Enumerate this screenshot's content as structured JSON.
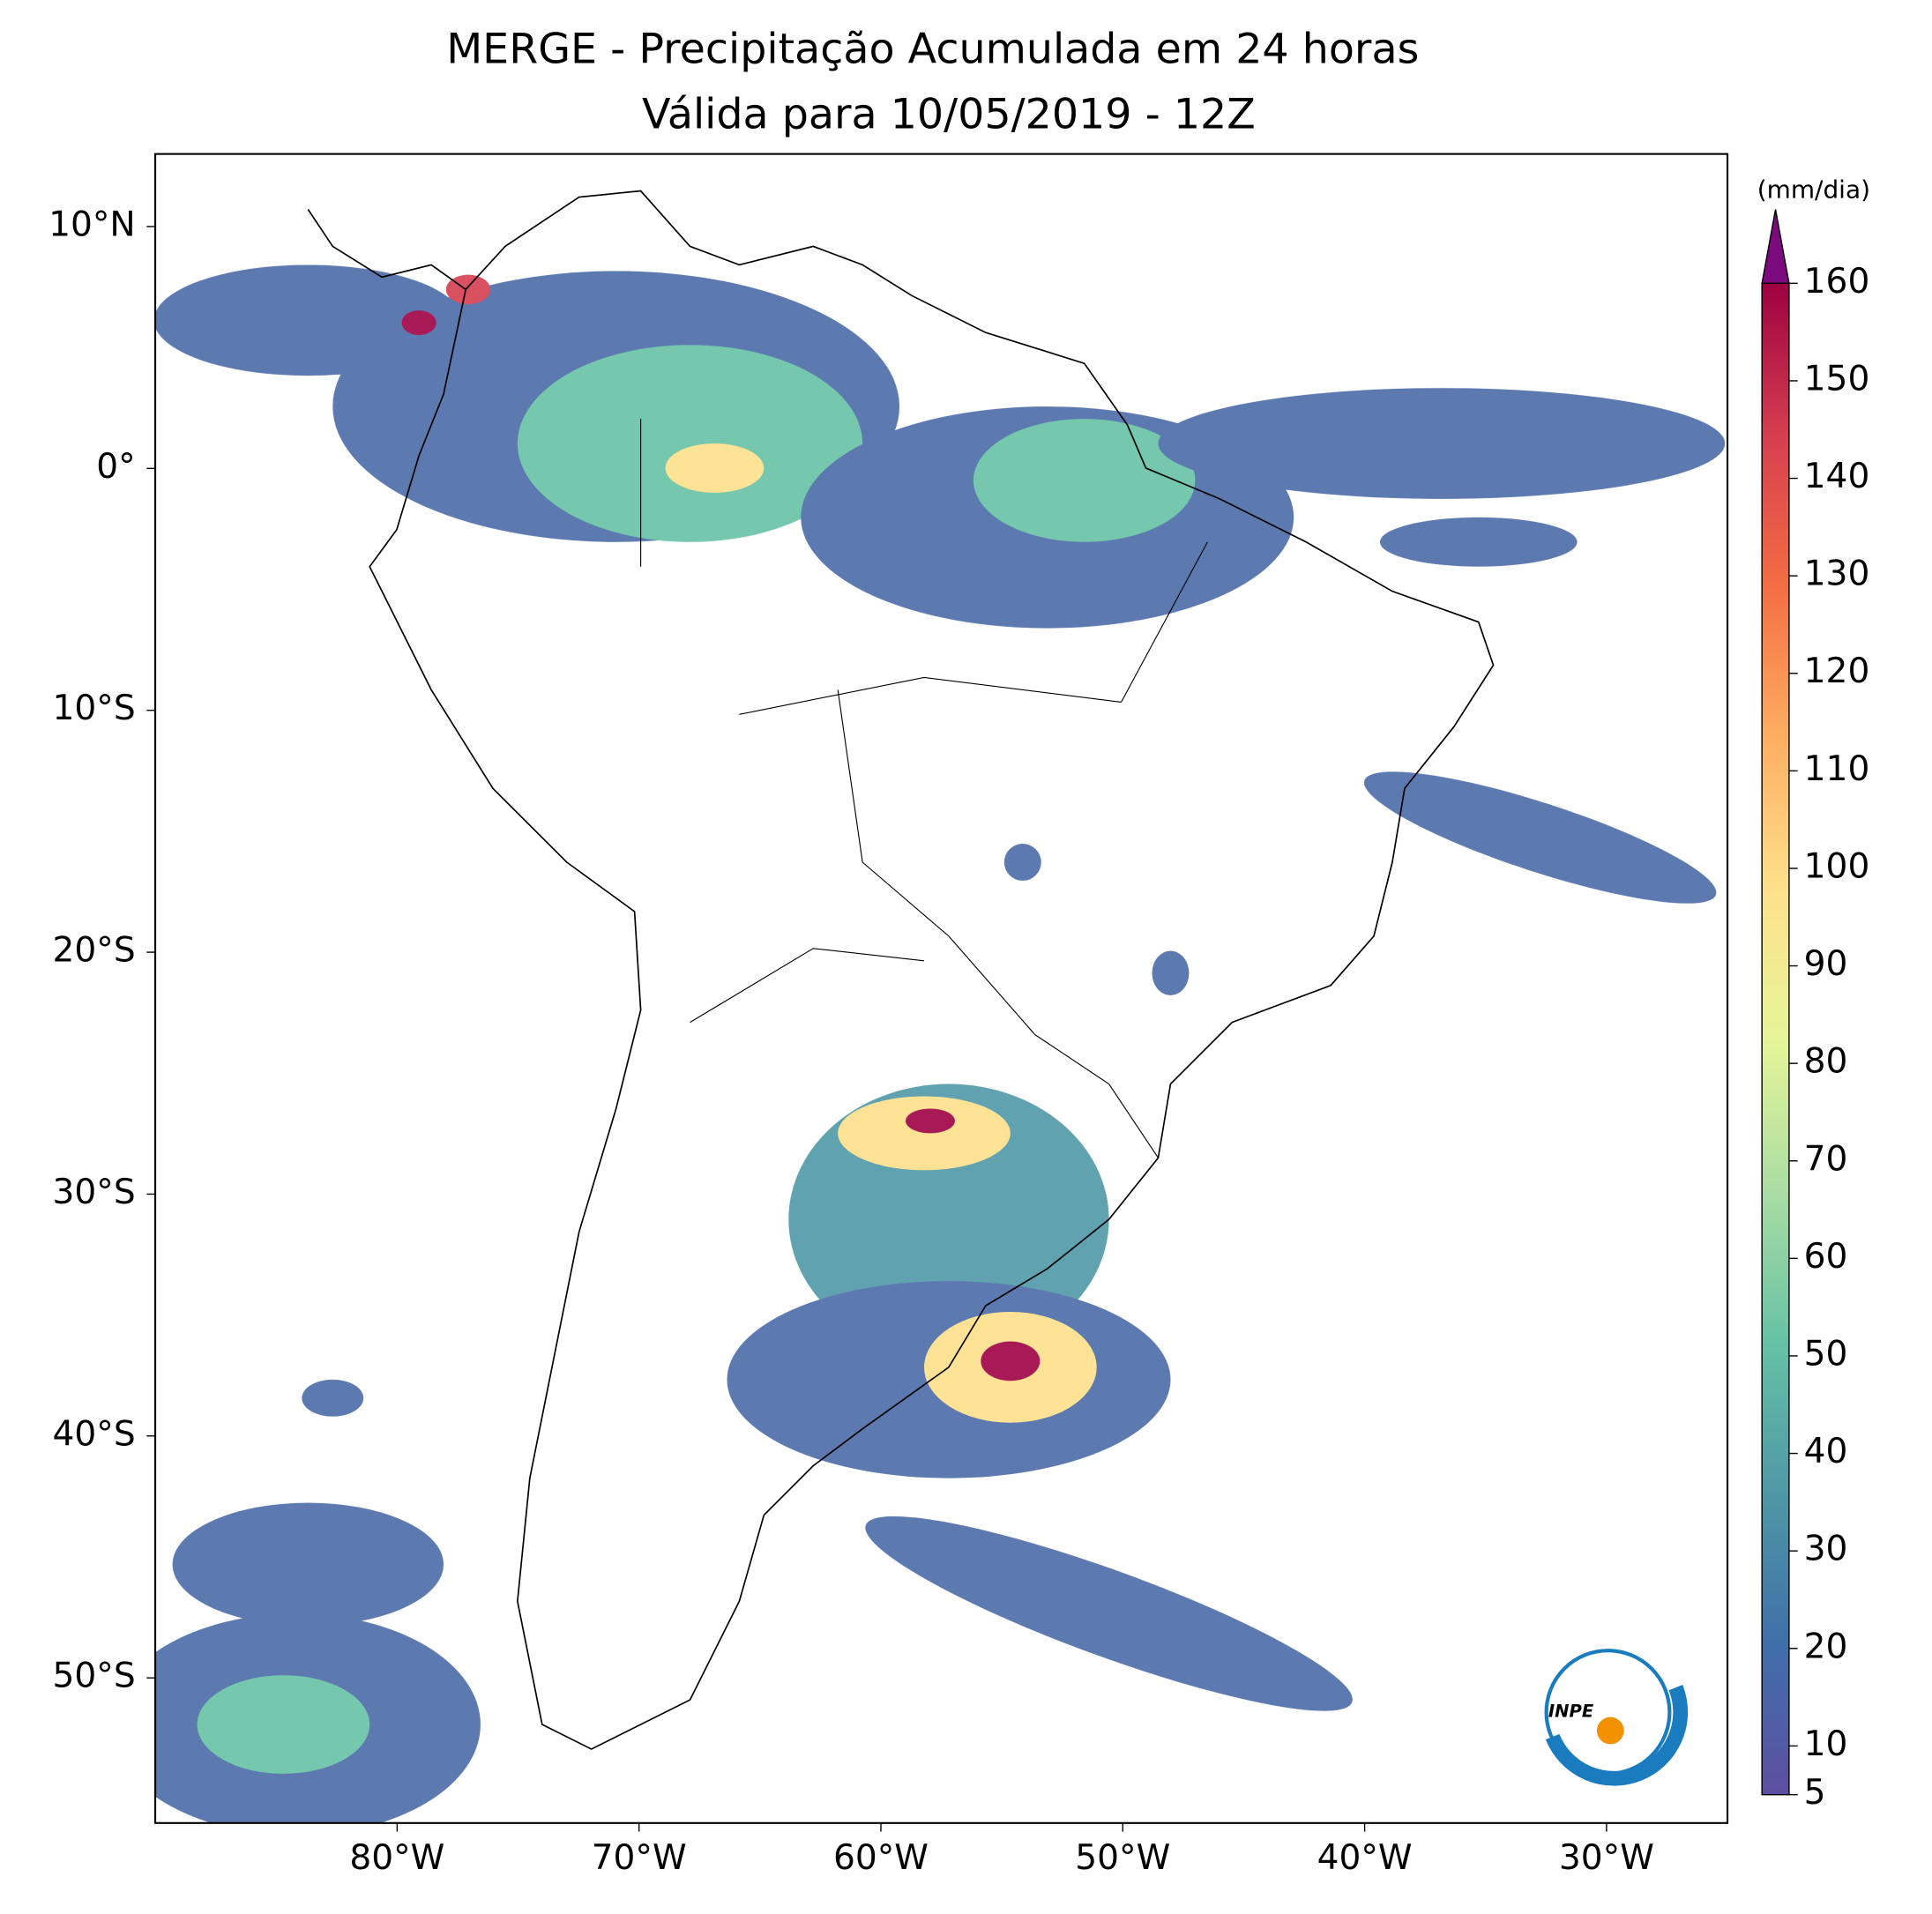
{
  "chart_data": {
    "type": "map",
    "title": "MERGE - Precipitação Acumulada em 24 horas",
    "subtitle": "Válida para 10/05/2019 - 12Z",
    "xlim": [
      -90,
      -25
    ],
    "ylim": [
      -56,
      13
    ],
    "xticks": [
      {
        "value": -80,
        "label": "80°W"
      },
      {
        "value": -70,
        "label": "70°W"
      },
      {
        "value": -60,
        "label": "60°W"
      },
      {
        "value": -50,
        "label": "50°W"
      },
      {
        "value": -40,
        "label": "40°W"
      },
      {
        "value": -30,
        "label": "30°W"
      }
    ],
    "yticks": [
      {
        "value": 10,
        "label": "10°N"
      },
      {
        "value": 0,
        "label": "0°"
      },
      {
        "value": -10,
        "label": "10°S"
      },
      {
        "value": -20,
        "label": "20°S"
      },
      {
        "value": -30,
        "label": "30°S"
      },
      {
        "value": -40,
        "label": "40°S"
      },
      {
        "value": -50,
        "label": "50°S"
      }
    ],
    "colorbar": {
      "label": "(mm/dia)",
      "lim": [
        5,
        160
      ],
      "ticks": [
        5,
        10,
        20,
        30,
        40,
        50,
        60,
        70,
        80,
        90,
        100,
        110,
        120,
        130,
        140,
        150,
        160
      ],
      "colors": [
        "#5e4fa2",
        "#3f6fa8",
        "#4f98a6",
        "#66c2a5",
        "#abdda4",
        "#e6f598",
        "#fee08b",
        "#fdae61",
        "#f46d43",
        "#d53e4f",
        "#9e0142"
      ],
      "extend_color": "#7b0b7d"
    },
    "logo_text": "INPE"
  }
}
